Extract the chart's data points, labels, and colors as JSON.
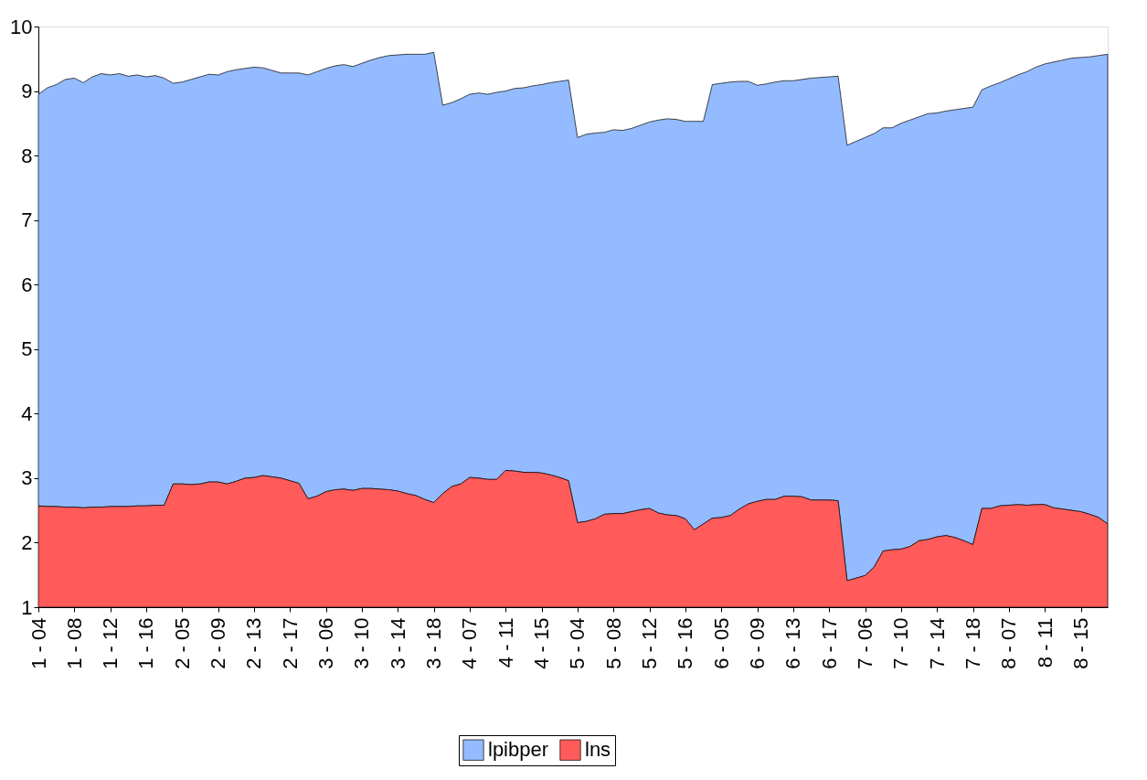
{
  "chart_data": {
    "type": "area",
    "categories": [
      "1 - 04",
      null,
      null,
      null,
      "1 - 08",
      null,
      null,
      null,
      "1 - 12",
      null,
      null,
      null,
      "1 - 16",
      null,
      null,
      null,
      "2 - 05",
      null,
      null,
      null,
      "2 - 09",
      null,
      null,
      null,
      "2 - 13",
      null,
      null,
      null,
      "2 - 17",
      null,
      null,
      null,
      "3 - 06",
      null,
      null,
      null,
      "3 - 10",
      null,
      null,
      null,
      "3 - 14",
      null,
      null,
      null,
      "3 - 18",
      null,
      null,
      null,
      "4 - 07",
      null,
      null,
      null,
      "4 - 11",
      null,
      null,
      null,
      "4 - 15",
      null,
      null,
      null,
      "5 - 04",
      null,
      null,
      null,
      "5 - 08",
      null,
      null,
      null,
      "5 - 12",
      null,
      null,
      null,
      "5 - 16",
      null,
      null,
      null,
      "6 - 05",
      null,
      null,
      null,
      "6 - 09",
      null,
      null,
      null,
      "6 - 13",
      null,
      null,
      null,
      "6 - 17",
      null,
      null,
      null,
      "7 - 06",
      null,
      null,
      null,
      "7 - 10",
      null,
      null,
      null,
      "7 - 14",
      null,
      null,
      null,
      "7 - 18",
      null,
      null,
      null,
      "8 - 07",
      null,
      null,
      null,
      "8 - 11",
      null,
      null,
      null,
      "8 - 15",
      null,
      null,
      null
    ],
    "series": [
      {
        "name": "lns",
        "color": "#ff5b5b",
        "values": [
          2.57,
          2.56,
          2.56,
          2.55,
          2.55,
          2.54,
          2.55,
          2.55,
          2.56,
          2.56,
          2.56,
          2.57,
          2.57,
          2.58,
          2.58,
          2.91,
          2.91,
          2.9,
          2.91,
          2.94,
          2.94,
          2.91,
          2.95,
          3.0,
          3.01,
          3.04,
          3.02,
          3.0,
          2.96,
          2.92,
          2.68,
          2.72,
          2.79,
          2.82,
          2.83,
          2.81,
          2.84,
          2.84,
          2.83,
          2.82,
          2.8,
          2.76,
          2.73,
          2.67,
          2.62,
          2.76,
          2.87,
          2.91,
          3.01,
          3.0,
          2.98,
          2.98,
          3.12,
          3.11,
          3.09,
          3.09,
          3.08,
          3.05,
          3.01,
          2.96,
          2.31,
          2.33,
          2.37,
          2.44,
          2.45,
          2.45,
          2.48,
          2.51,
          2.53,
          2.46,
          2.43,
          2.42,
          2.37,
          2.2,
          2.29,
          2.38,
          2.39,
          2.42,
          2.52,
          2.6,
          2.64,
          2.67,
          2.67,
          2.72,
          2.72,
          2.71,
          2.66,
          2.66,
          2.66,
          2.65,
          1.41,
          1.45,
          1.49,
          1.62,
          1.87,
          1.89,
          1.9,
          1.94,
          2.03,
          2.05,
          2.09,
          2.11,
          2.08,
          2.03,
          1.97,
          2.53,
          2.53,
          2.57,
          2.58,
          2.59,
          2.58,
          2.59,
          2.59,
          2.54,
          2.52,
          2.5,
          2.48,
          2.44,
          2.39,
          2.29
        ]
      },
      {
        "name": "lpibper",
        "color": "#94bbff",
        "values": [
          8.95,
          9.05,
          9.1,
          9.18,
          9.2,
          9.13,
          9.22,
          9.27,
          9.25,
          9.27,
          9.23,
          9.25,
          9.22,
          9.24,
          9.2,
          9.12,
          9.14,
          9.18,
          9.22,
          9.26,
          9.25,
          9.3,
          9.33,
          9.35,
          9.37,
          9.36,
          9.32,
          9.28,
          9.28,
          9.28,
          9.25,
          9.3,
          9.35,
          9.39,
          9.41,
          9.38,
          9.43,
          9.48,
          9.52,
          9.55,
          9.56,
          9.57,
          9.57,
          9.57,
          9.6,
          8.78,
          8.82,
          8.88,
          8.95,
          8.97,
          8.95,
          8.98,
          9.0,
          9.04,
          9.05,
          9.08,
          9.1,
          9.13,
          9.15,
          9.17,
          8.28,
          8.33,
          8.35,
          8.36,
          8.4,
          8.39,
          8.42,
          8.47,
          8.52,
          8.55,
          8.57,
          8.56,
          8.53,
          8.53,
          8.53,
          9.1,
          9.12,
          9.14,
          9.15,
          9.15,
          9.09,
          9.11,
          9.14,
          9.16,
          9.16,
          9.18,
          9.2,
          9.21,
          9.22,
          9.23,
          8.16,
          8.22,
          8.28,
          8.34,
          8.43,
          8.43,
          8.5,
          8.55,
          8.6,
          8.65,
          8.66,
          8.69,
          8.71,
          8.73,
          8.75,
          9.02,
          9.08,
          9.13,
          9.19,
          9.25,
          9.3,
          9.37,
          9.42,
          9.45,
          9.48,
          9.51,
          9.52,
          9.53,
          9.55,
          9.57
        ]
      }
    ],
    "ylim": [
      1,
      10
    ],
    "yticks": [
      1,
      2,
      3,
      4,
      5,
      6,
      7,
      8,
      9,
      10
    ],
    "grid": false,
    "legend": "bottom"
  }
}
